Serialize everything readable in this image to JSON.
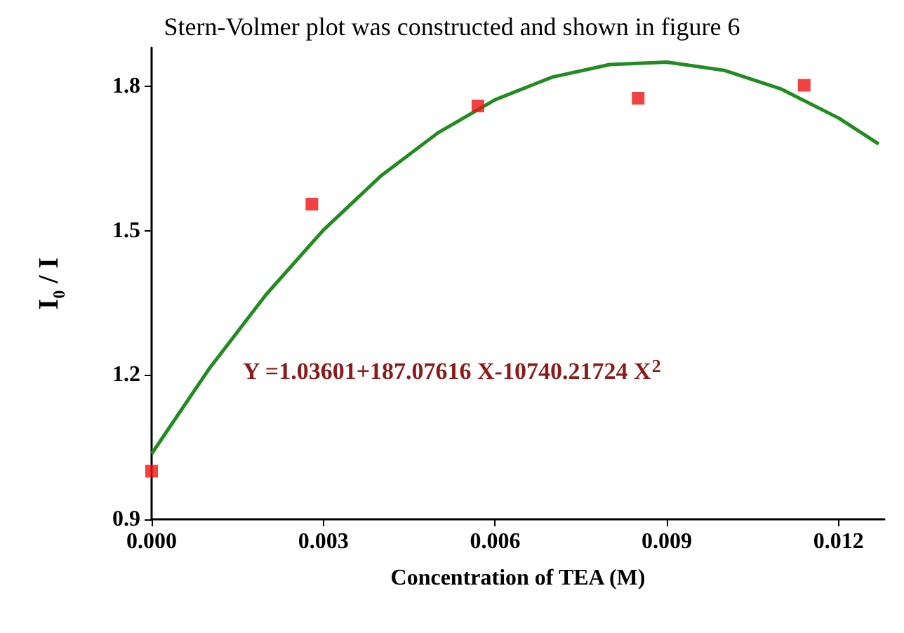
{
  "chart_data": {
    "type": "scatter",
    "xlabel": "Concentration of TEA (M)",
    "ylabel": "I$_{0}$ / I",
    "annotations": [
      "Stern-Volmer plot was constructed and shown in figure 6",
      "Y =1.03601+187.07616 X-10740.21724 X$^{2}$"
    ],
    "xlim": [
      0,
      0.0128
    ],
    "ylim": [
      0.9,
      1.88
    ],
    "xticks": [
      {
        "value": 0,
        "label": "0.000"
      },
      {
        "value": 0.003,
        "label": "0.003"
      },
      {
        "value": 0.006,
        "label": "0.006"
      },
      {
        "value": 0.009,
        "label": "0.009"
      },
      {
        "value": 0.012,
        "label": "0.012"
      }
    ],
    "yticks": [
      0.9,
      1.2,
      1.5,
      1.8
    ],
    "grid": false,
    "series": [
      {
        "marker": "square",
        "color": "#ee1111",
        "x": [
          0,
          0.0028,
          0.0057,
          0.0085,
          0.0114
        ],
        "values": [
          1.0,
          1.555,
          1.759,
          1.775,
          1.802
        ]
      },
      {
        "type": "line",
        "marker": "none",
        "color": "#228b22",
        "x": [
          0,
          0.001,
          0.002,
          0.003,
          0.004,
          0.005,
          0.006,
          0.007,
          0.008,
          0.009,
          0.01,
          0.011,
          0.012,
          0.0127
        ],
        "values": [
          1.036,
          1.212,
          1.367,
          1.501,
          1.613,
          1.703,
          1.772,
          1.819,
          1.845,
          1.85,
          1.833,
          1.794,
          1.734,
          1.68
        ]
      }
    ]
  }
}
